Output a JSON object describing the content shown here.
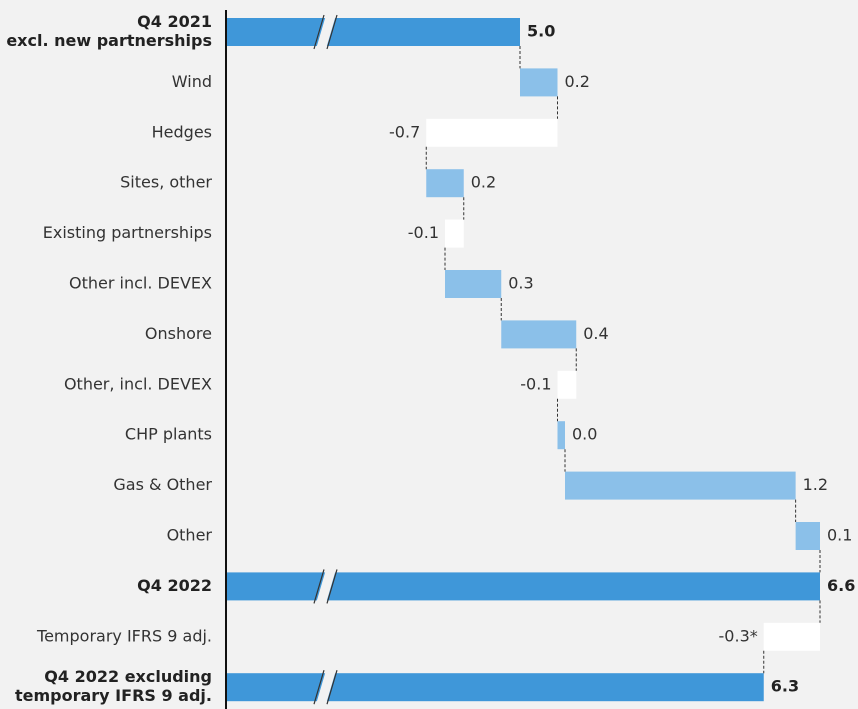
{
  "chart_data": {
    "type": "waterfall",
    "categories": [
      [
        "Q4 2021",
        "excl. new partnerships"
      ],
      "Wind",
      "Hedges",
      "Sites, other",
      "Existing partnerships",
      "Other incl. DEVEX",
      "Onshore",
      "Other, incl. DEVEX",
      "CHP plants",
      "Gas & Other",
      "Other",
      "Q4 2022",
      "Temporary IFRS 9 adj.",
      [
        "Q4 2022 excluding",
        "temporary IFRS 9 adj."
      ]
    ],
    "measure": [
      "total",
      "relative",
      "relative",
      "relative",
      "relative",
      "relative",
      "relative",
      "relative",
      "relative",
      "relative",
      "relative",
      "total",
      "relative",
      "total"
    ],
    "values": [
      5.0,
      0.2,
      -0.7,
      0.2,
      -0.1,
      0.3,
      0.4,
      -0.1,
      0.04,
      1.23,
      0.13,
      6.6,
      -0.3,
      6.3
    ],
    "value_labels": [
      "5.0",
      "0.2",
      "-0.7",
      "0.2",
      "-0.1",
      "0.3",
      "0.4",
      "-0.1",
      "0.0",
      "1.2",
      "0.1",
      "6.6",
      "-0.3*",
      "6.3"
    ],
    "colors": {
      "total": "#3f97d9",
      "increase": "#8bc0e9",
      "decrease": "#ffffff"
    },
    "axis_break": true
  }
}
